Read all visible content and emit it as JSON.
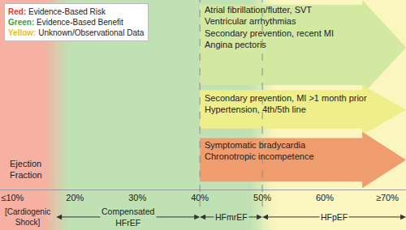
{
  "chart_data": {
    "type": "bands",
    "xlabel": "Ejection Fraction",
    "xlim": [
      8,
      73
    ],
    "xticks": [
      {
        "value": 10,
        "label": "≤10%"
      },
      {
        "value": 20,
        "label": "20%"
      },
      {
        "value": 30,
        "label": "30%"
      },
      {
        "value": 40,
        "label": "40%"
      },
      {
        "value": 50,
        "label": "50%"
      },
      {
        "value": 60,
        "label": "60%"
      },
      {
        "value": 70,
        "label": "≥70%"
      }
    ],
    "key": [
      {
        "name": "Red:",
        "text": "Evidence-Based Risk",
        "color": "#e5392a"
      },
      {
        "name": "Green:",
        "text": "Evidence-Based Benefit",
        "color": "#35a532"
      },
      {
        "name": "Yellow:",
        "text": "Unknown/Observational Data",
        "color": "#e9bf16"
      }
    ],
    "zones": [
      {
        "from": 8,
        "to": 17,
        "color": "#f6b1a2"
      },
      {
        "from": 17,
        "to": 50,
        "color": "#c0e1b4"
      },
      {
        "from": 50,
        "to": 73,
        "color": "#fbf5bf"
      }
    ],
    "vlines": [
      40,
      50
    ],
    "arrows": [
      {
        "from": 40,
        "to": 73,
        "color": "#d3e9a2",
        "texts": [
          "Atrial fibrillation/flutter, SVT",
          "Ventricular arrhythmias",
          "Secondary prevention, recent MI",
          "Angina pectoris"
        ]
      },
      {
        "from": 40,
        "to": 73,
        "color": "#eeee8a",
        "texts": [
          "Secondary prevention, MI >1 month prior",
          "Hypertension, 4th/5th line"
        ]
      },
      {
        "from": 40,
        "to": 73,
        "color": "#ef9d6e",
        "texts": [
          "Symptomatic bradycardia",
          "Chronotropic incompetence"
        ]
      }
    ],
    "shock_label": "[Cardiogenic Shock]",
    "spans": [
      {
        "label": "Compensated HFrEF",
        "from": 17,
        "to": 40
      },
      {
        "label": "HFmrEF",
        "from": 40,
        "to": 50
      },
      {
        "label": "HFpEF",
        "from": 50,
        "to": 73
      }
    ]
  }
}
